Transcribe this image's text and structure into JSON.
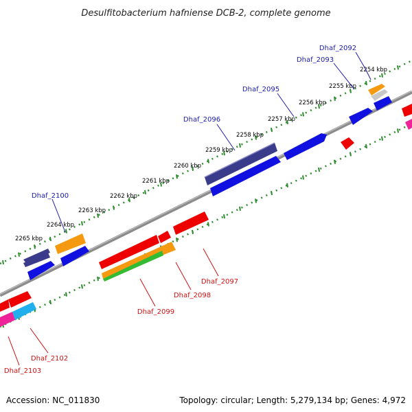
{
  "title": "Desulfitobacterium hafniense DCB-2, complete genome",
  "accession_text": "Accession: NC_011830",
  "topology_text": "Topology: circular; Length: 5,279,134 bp; Genes: 4,972",
  "kbp_labels": [
    {
      "label": "2254 kbp"
    },
    {
      "label": "2255 kbp"
    },
    {
      "label": "2256 kbp"
    },
    {
      "label": "2257 kbp"
    },
    {
      "label": "2258 kbp"
    },
    {
      "label": "2259 kbp"
    },
    {
      "label": "2260 kbp"
    },
    {
      "label": "2261 kbp"
    },
    {
      "label": "2262 kbp"
    },
    {
      "label": "2263 kbp"
    },
    {
      "label": "2264 kbp"
    },
    {
      "label": "2265 kbp"
    }
  ],
  "genes": [
    {
      "id": "Dhaf_2092",
      "strand": "forward"
    },
    {
      "id": "Dhaf_2093",
      "strand": "forward"
    },
    {
      "id": "Dhaf_2095",
      "strand": "forward"
    },
    {
      "id": "Dhaf_2096",
      "strand": "forward"
    },
    {
      "id": "Dhaf_2100",
      "strand": "forward"
    },
    {
      "id": "Dhaf_2097",
      "strand": "reverse"
    },
    {
      "id": "Dhaf_2098",
      "strand": "reverse"
    },
    {
      "id": "Dhaf_2099",
      "strand": "reverse"
    },
    {
      "id": "Dhaf_2102",
      "strand": "reverse"
    },
    {
      "id": "Dhaf_2103",
      "strand": "reverse"
    }
  ],
  "colors": {
    "forward_label": "#1a1aa8",
    "reverse_label": "#cc1111",
    "backbone": "#8c8c8c",
    "tick_dots": "#2e8b2e",
    "blue": "#1010e0",
    "red": "#ee0000",
    "orange": "#f59a10",
    "purple": "#3b3b8c",
    "green": "#33bb33",
    "pink": "#ee2299",
    "cyan": "#20b0ee"
  }
}
